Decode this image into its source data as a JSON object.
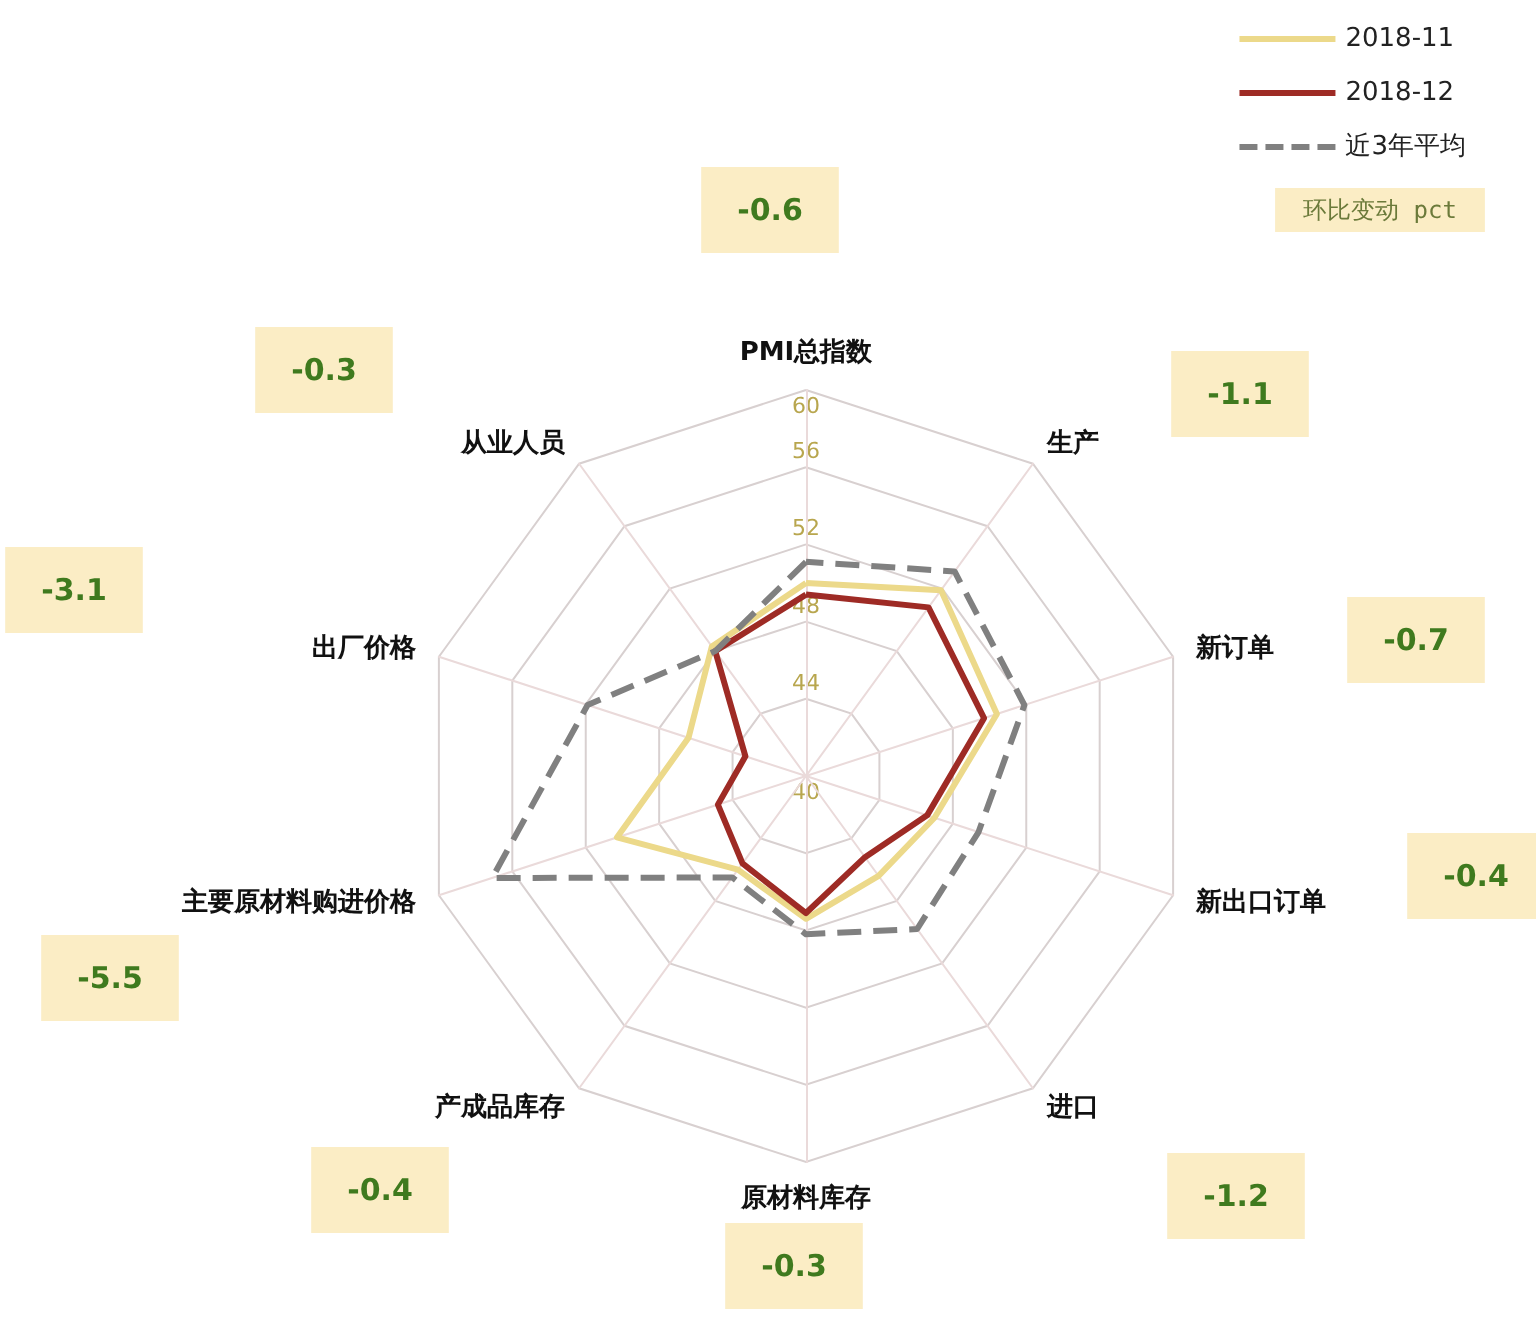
{
  "chart_data": {
    "type": "radar",
    "categories": [
      "PMI总指数",
      "生产",
      "新订单",
      "新出口订单",
      "进口",
      "原材料库存",
      "产成品库存",
      "主要原材料购进价格",
      "出厂价格",
      "从业人员"
    ],
    "series": [
      {
        "name": "2018-11",
        "color": "#ecd98a",
        "line_style": "solid",
        "values": [
          50.0,
          51.9,
          50.4,
          47.0,
          46.4,
          47.4,
          46.0,
          50.3,
          46.4,
          48.3
        ]
      },
      {
        "name": "2018-12",
        "color": "#9e2b25",
        "line_style": "solid",
        "values": [
          49.4,
          50.8,
          49.7,
          46.6,
          45.2,
          47.1,
          45.6,
          44.8,
          43.3,
          48.0
        ]
      },
      {
        "name": "近3年平均",
        "color": "#808080",
        "line_style": "dashed",
        "values": [
          51.1,
          53.1,
          51.9,
          49.4,
          49.8,
          48.2,
          46.5,
          57.1,
          51.9,
          48.0
        ]
      }
    ],
    "ylim": [
      40,
      60
    ],
    "yticks": [
      40,
      44,
      48,
      52,
      56,
      60
    ],
    "grid": true,
    "legend": "top right",
    "marker": "none",
    "annotations": [
      "环比变动 pct",
      "-0.6",
      "-1.1",
      "-0.7",
      "-0.4",
      "-1.2",
      "-0.3",
      "-0.4",
      "-5.5",
      "-3.1",
      "-0.3"
    ]
  }
}
